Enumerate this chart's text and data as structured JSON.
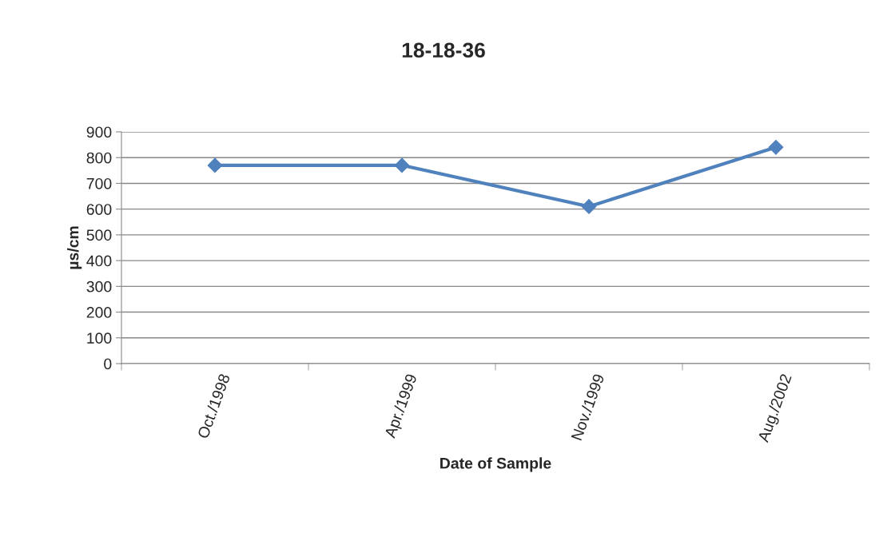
{
  "chart_data": {
    "type": "line",
    "title": "18-18-36",
    "xlabel": "Date of Sample",
    "ylabel": "µs/cm",
    "categories": [
      "Oct./1998",
      "Apr./1999",
      "Nov./1999",
      "Aug./2002"
    ],
    "series": [
      {
        "color": "#4f81bd",
        "values": [
          770,
          770,
          610,
          840
        ]
      }
    ],
    "ylim": [
      0,
      900
    ],
    "yticks": [
      0,
      100,
      200,
      300,
      400,
      500,
      600,
      700,
      800,
      900
    ],
    "grid": "y",
    "legend": false,
    "marker": "diamond",
    "line_style": "solid"
  }
}
